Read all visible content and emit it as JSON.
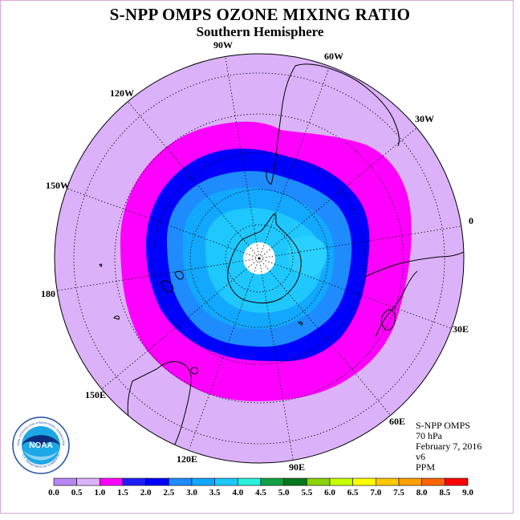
{
  "title": "S-NPP OMPS OZONE MIXING RATIO",
  "subtitle": "Southern Hemisphere",
  "logo": {
    "text": "NOAA",
    "ring_text": "NATIONAL OCEANIC AND ATMOSPHERIC ADMINISTRATION",
    "ring_text_lower": "U.S. DEPARTMENT OF COMMERCE"
  },
  "info": {
    "instrument": "S-NPP OMPS",
    "level": "70 hPa",
    "date": "February 7, 2016",
    "version": "v6",
    "units": "PPM"
  },
  "longitude_labels": [
    "90W",
    "60W",
    "30W",
    "0",
    "30E",
    "60E",
    "90E",
    "120E",
    "150E",
    "180",
    "150W",
    "120W"
  ],
  "colorbar": {
    "ticks": [
      "0.0",
      "0.5",
      "1.0",
      "1.5",
      "2.0",
      "2.5",
      "3.0",
      "3.5",
      "4.0",
      "4.5",
      "5.0",
      "5.5",
      "6.0",
      "6.5",
      "7.0",
      "7.5",
      "8.0",
      "8.5",
      "9.0"
    ],
    "colors": [
      "#b987f1",
      "#dbb2f9",
      "#ff00ff",
      "#1e1eff",
      "#0000ff",
      "#1e8cff",
      "#12a8ff",
      "#1ec8ff",
      "#28f0dc",
      "#12a046",
      "#00781e",
      "#8cd20a",
      "#c8ff00",
      "#ffff00",
      "#ffc800",
      "#ffa000",
      "#ff6400",
      "#ff0000",
      "#8c5a3c"
    ]
  },
  "chart_data": {
    "type": "heatmap",
    "projection": "south polar stereographic",
    "variable": "ozone mixing ratio",
    "units": "PPM",
    "pressure_level": "70 hPa",
    "date": "February 7, 2016",
    "value_range": [
      0.0,
      9.0
    ],
    "levels": [
      0.0,
      0.5,
      1.0,
      1.5,
      2.0,
      2.5,
      3.0,
      3.5,
      4.0,
      4.5,
      5.0,
      5.5,
      6.0,
      6.5,
      7.0,
      7.5,
      8.0,
      8.5,
      9.0
    ],
    "observed_bands_equator_to_pole": [
      "0.5-1.0",
      "1.0-1.5",
      "1.5-2.0",
      "2.0-2.5",
      "2.5-3.0",
      "3.0-3.5"
    ]
  }
}
